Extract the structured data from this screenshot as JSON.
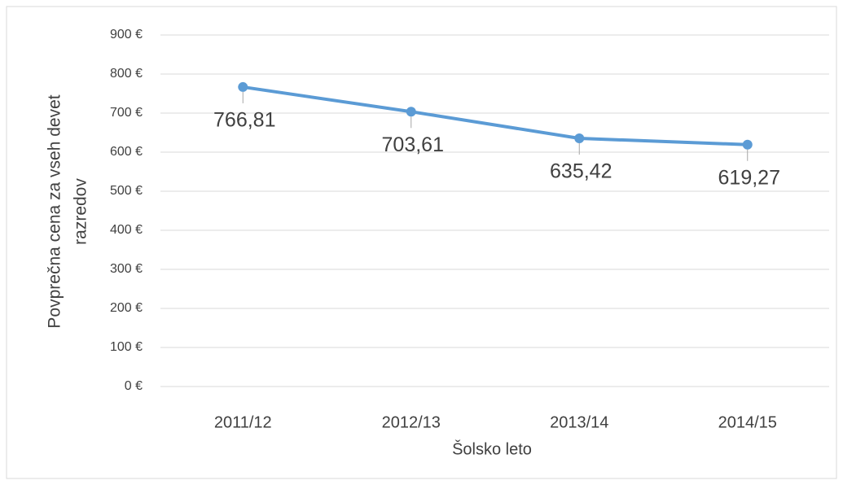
{
  "chart_data": {
    "type": "line",
    "categories": [
      "2011/12",
      "2012/13",
      "2013/14",
      "2014/15"
    ],
    "series": [
      {
        "color": "#5b9bd5",
        "values": [
          766.81,
          703.61,
          635.42,
          619.27
        ],
        "value_labels": [
          "766,81",
          "703,61",
          "635,42",
          "619,27"
        ]
      }
    ],
    "xlabel": "Šolsko leto",
    "ylabel": [
      "Povprečna cena za vseh devet",
      "razredov"
    ],
    "ylim": [
      0,
      900
    ],
    "yticks": [
      {
        "value": 0,
        "label": "0 €"
      },
      {
        "value": 100,
        "label": "100 €"
      },
      {
        "value": 200,
        "label": "200 €"
      },
      {
        "value": 300,
        "label": "300 €"
      },
      {
        "value": 400,
        "label": "400 €"
      },
      {
        "value": 500,
        "label": "500 €"
      },
      {
        "value": 600,
        "label": "600 €"
      },
      {
        "value": 700,
        "label": "700 €"
      },
      {
        "value": 800,
        "label": "800 €"
      },
      {
        "value": 900,
        "label": "900 €"
      }
    ],
    "grid": true
  }
}
